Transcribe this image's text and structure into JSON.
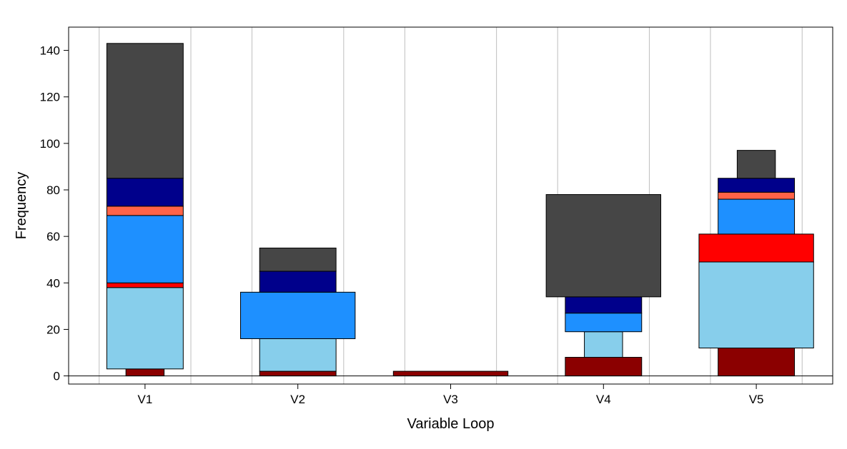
{
  "chart_data": {
    "type": "bar",
    "style": "stacked-variable-width",
    "xlabel": "Variable Loop",
    "ylabel": "Frequency",
    "categories": [
      "V1",
      "V2",
      "V3",
      "V4",
      "V5"
    ],
    "ylim": [
      -3.5,
      150
    ],
    "yticks": [
      0,
      20,
      40,
      60,
      80,
      100,
      120,
      140
    ],
    "grid": "vertical",
    "segments": [
      {
        "category": "V1",
        "from": 0,
        "to": 3,
        "width": 0.25,
        "color": "#8B0000"
      },
      {
        "category": "V1",
        "from": 3,
        "to": 38,
        "width": 0.5,
        "color": "#87CEEB"
      },
      {
        "category": "V1",
        "from": 38,
        "to": 40,
        "width": 0.5,
        "color": "#FF0000"
      },
      {
        "category": "V1",
        "from": 40,
        "to": 69,
        "width": 0.5,
        "color": "#1E90FF"
      },
      {
        "category": "V1",
        "from": 69,
        "to": 73,
        "width": 0.5,
        "color": "#FF6347"
      },
      {
        "category": "V1",
        "from": 73,
        "to": 85,
        "width": 0.5,
        "color": "#00008B"
      },
      {
        "category": "V1",
        "from": 85,
        "to": 143,
        "width": 0.5,
        "color": "#464646"
      },
      {
        "category": "V2",
        "from": 0,
        "to": 2,
        "width": 0.5,
        "color": "#8B0000"
      },
      {
        "category": "V2",
        "from": 2,
        "to": 16,
        "width": 0.5,
        "color": "#87CEEB"
      },
      {
        "category": "V2",
        "from": 16,
        "to": 36,
        "width": 0.75,
        "color": "#1E90FF"
      },
      {
        "category": "V2",
        "from": 36,
        "to": 45,
        "width": 0.5,
        "color": "#00008B"
      },
      {
        "category": "V2",
        "from": 45,
        "to": 55,
        "width": 0.5,
        "color": "#464646"
      },
      {
        "category": "V3",
        "from": 0,
        "to": 2,
        "width": 0.75,
        "color": "#8B0000"
      },
      {
        "category": "V4",
        "from": 0,
        "to": 8,
        "width": 0.5,
        "color": "#8B0000"
      },
      {
        "category": "V4",
        "from": 8,
        "to": 19,
        "width": 0.25,
        "color": "#87CEEB"
      },
      {
        "category": "V4",
        "from": 19,
        "to": 27,
        "width": 0.5,
        "color": "#1E90FF"
      },
      {
        "category": "V4",
        "from": 27,
        "to": 34,
        "width": 0.5,
        "color": "#00008B"
      },
      {
        "category": "V4",
        "from": 34,
        "to": 78,
        "width": 0.75,
        "color": "#464646"
      },
      {
        "category": "V5",
        "from": 0,
        "to": 12,
        "width": 0.5,
        "color": "#8B0000"
      },
      {
        "category": "V5",
        "from": 12,
        "to": 49,
        "width": 0.75,
        "color": "#87CEEB"
      },
      {
        "category": "V5",
        "from": 49,
        "to": 61,
        "width": 0.75,
        "color": "#FF0000"
      },
      {
        "category": "V5",
        "from": 61,
        "to": 76,
        "width": 0.5,
        "color": "#1E90FF"
      },
      {
        "category": "V5",
        "from": 76,
        "to": 79,
        "width": 0.5,
        "color": "#FF6347"
      },
      {
        "category": "V5",
        "from": 79,
        "to": 85,
        "width": 0.5,
        "color": "#00008B"
      },
      {
        "category": "V5",
        "from": 85,
        "to": 97,
        "width": 0.25,
        "color": "#464646"
      }
    ]
  }
}
